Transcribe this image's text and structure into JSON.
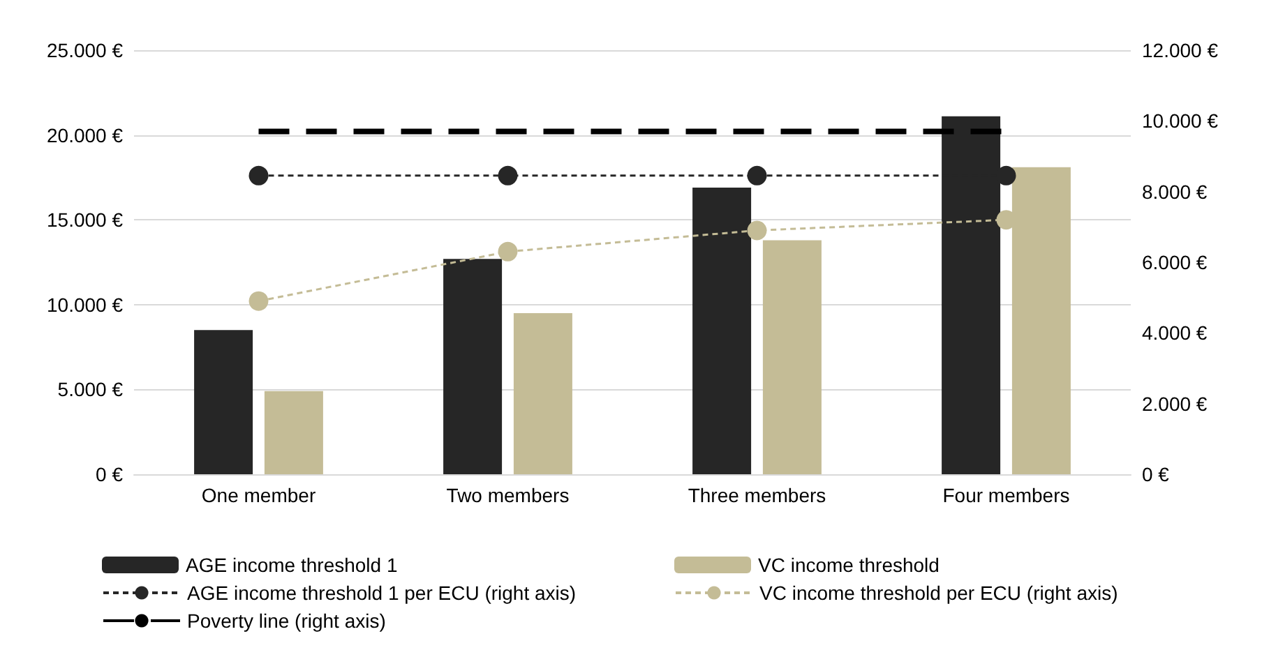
{
  "chart_data": {
    "type": "bar",
    "categories": [
      "One member",
      "Two members",
      "Three members",
      "Four members"
    ],
    "series": [
      {
        "name": "AGE income threshold 1",
        "color": "#262626",
        "values": [
          8500,
          12700,
          16900,
          21100
        ]
      },
      {
        "name": "VC income threshold",
        "color": "#c4bc96",
        "values": [
          4900,
          9500,
          13800,
          18100
        ]
      },
      {
        "name": "AGE income threshold 1 per ECU (right axis)",
        "type": "line",
        "axis": "y2",
        "color": "#262626",
        "marker": "circle",
        "line_style": "dashed",
        "values": [
          8450,
          8450,
          8450,
          8450
        ]
      },
      {
        "name": "VC income threshold per ECU (right axis)",
        "type": "line",
        "axis": "y2",
        "color": "#c4bc96",
        "marker": "circle",
        "line_style": "dashed",
        "values": [
          4900,
          6300,
          6900,
          7200
        ]
      },
      {
        "name": "Poverty line (right axis)",
        "type": "line",
        "axis": "y2",
        "color": "#000000",
        "marker": "none",
        "line_style": "dashed",
        "values": [
          9700,
          9700,
          9700,
          9700
        ]
      }
    ],
    "ylim": [
      0,
      25000
    ],
    "yticks": [
      {
        "value": 0,
        "label": "0 €"
      },
      {
        "value": 5000,
        "label": "5.000 €"
      },
      {
        "value": 10000,
        "label": "10.000 €"
      },
      {
        "value": 15000,
        "label": "15.000 €"
      },
      {
        "value": 20000,
        "label": "20.000 €"
      },
      {
        "value": 25000,
        "label": "25.000 €"
      }
    ],
    "y2lim": [
      0,
      12000
    ],
    "y2ticks": [
      {
        "value": 0,
        "label": "0 €"
      },
      {
        "value": 2000,
        "label": "2.000 €"
      },
      {
        "value": 4000,
        "label": "4.000 €"
      },
      {
        "value": 6000,
        "label": "6.000 €"
      },
      {
        "value": 8000,
        "label": "8.000 €"
      },
      {
        "value": 10000,
        "label": "10.000 €"
      },
      {
        "value": 12000,
        "label": "12.000 €"
      }
    ],
    "grid": "y",
    "legend": "bottom"
  }
}
